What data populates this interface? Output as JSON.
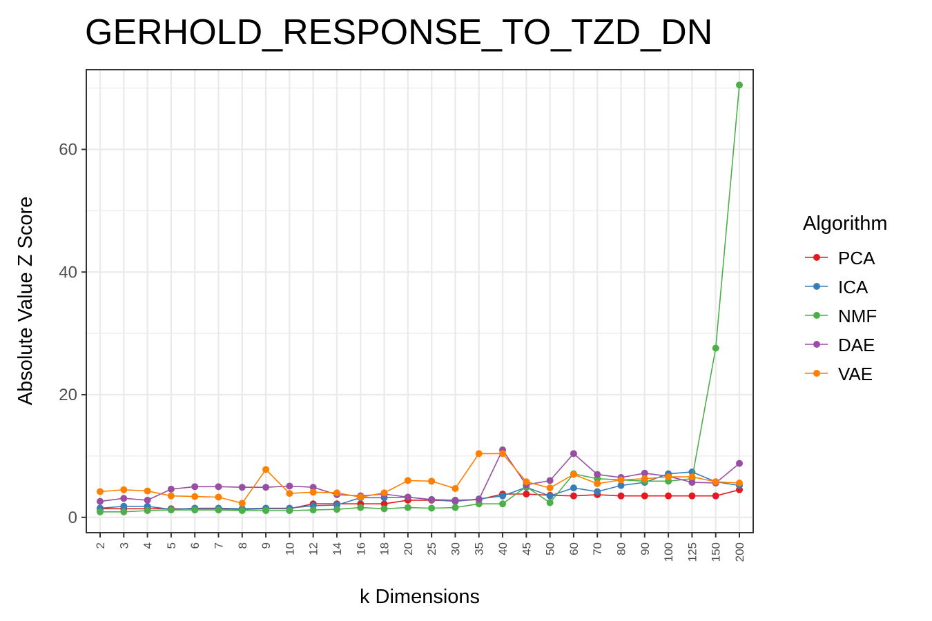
{
  "chart_data": {
    "type": "line",
    "title": "GERHOLD_RESPONSE_TO_TZD_DN",
    "xlabel": "k Dimensions",
    "ylabel": "Absolute Value Z Score",
    "categories": [
      "2",
      "3",
      "4",
      "5",
      "6",
      "7",
      "8",
      "9",
      "10",
      "12",
      "14",
      "16",
      "18",
      "20",
      "25",
      "30",
      "35",
      "40",
      "45",
      "50",
      "60",
      "70",
      "80",
      "90",
      "100",
      "125",
      "150",
      "200"
    ],
    "ylim": [
      -2.5,
      73
    ],
    "yticks": [
      0,
      20,
      40,
      60
    ],
    "grid": true,
    "legend": {
      "title": "Algorithm",
      "position": "right"
    },
    "series": [
      {
        "name": "PCA",
        "color": "#e41a1c",
        "values": [
          1.4,
          1.4,
          1.4,
          1.4,
          1.4,
          1.4,
          1.3,
          1.4,
          1.4,
          2.2,
          2.2,
          2.2,
          2.2,
          2.8,
          2.8,
          2.7,
          2.9,
          3.8,
          3.8,
          3.6,
          3.5,
          3.7,
          3.5,
          3.5,
          3.5,
          3.5,
          3.5,
          4.5
        ]
      },
      {
        "name": "ICA",
        "color": "#377eb8",
        "values": [
          1.5,
          1.8,
          1.8,
          1.3,
          1.5,
          1.5,
          1.4,
          1.5,
          1.5,
          1.9,
          2.0,
          3.2,
          3.2,
          3.3,
          2.9,
          2.6,
          3.0,
          3.5,
          4.9,
          3.5,
          4.8,
          4.2,
          5.2,
          5.7,
          7.1,
          7.4,
          5.8,
          5.2
        ]
      },
      {
        "name": "NMF",
        "color": "#4daf4a",
        "values": [
          0.9,
          0.9,
          1.1,
          1.2,
          1.2,
          1.2,
          1.1,
          1.1,
          1.1,
          1.2,
          1.3,
          1.6,
          1.4,
          1.6,
          1.5,
          1.6,
          2.2,
          2.2,
          5.0,
          2.4,
          7.1,
          6.3,
          6.1,
          5.9,
          5.9,
          6.3,
          27.6,
          70.5
        ]
      },
      {
        "name": "DAE",
        "color": "#984ea3",
        "values": [
          2.6,
          3.1,
          2.8,
          4.6,
          5.0,
          5.0,
          4.9,
          4.9,
          5.1,
          4.9,
          3.7,
          3.5,
          3.8,
          3.3,
          2.9,
          2.8,
          2.9,
          11.0,
          5.3,
          6.0,
          10.4,
          7.0,
          6.5,
          7.2,
          6.7,
          5.7,
          5.6,
          8.8
        ]
      },
      {
        "name": "VAE",
        "color": "#ff7f00",
        "values": [
          4.2,
          4.5,
          4.3,
          3.5,
          3.4,
          3.3,
          2.3,
          7.8,
          3.9,
          4.1,
          4.0,
          3.3,
          4.0,
          6.0,
          5.9,
          4.7,
          10.4,
          10.4,
          5.8,
          4.8,
          7.0,
          5.5,
          6.1,
          6.3,
          6.6,
          6.6,
          5.8,
          5.6
        ]
      }
    ]
  }
}
